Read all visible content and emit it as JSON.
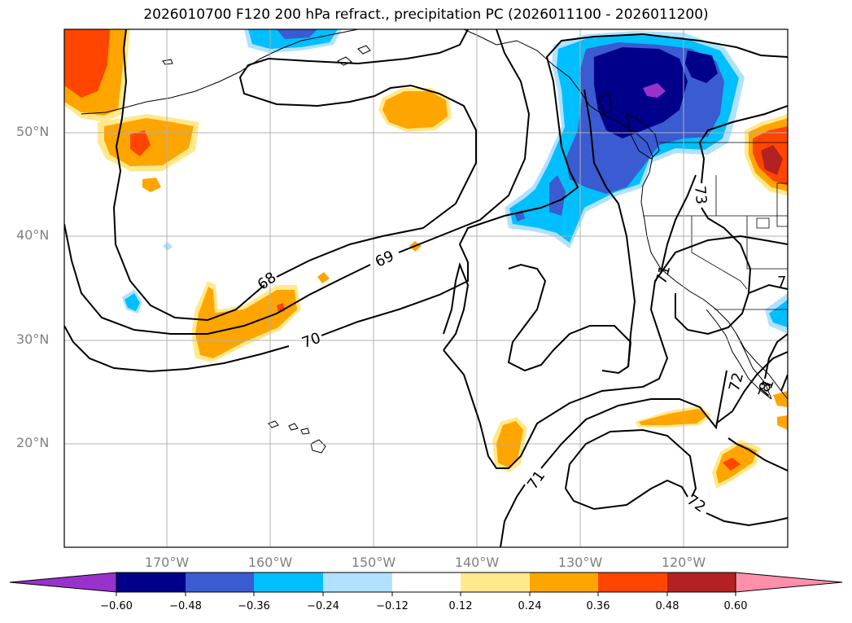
{
  "title": "2026010700 F120 200 hPa refract., precipitation PC (2026011100 - 2026011200)",
  "lat_labels": [
    "50°N",
    "40°N",
    "30°N",
    "20°N"
  ],
  "lon_labels": [
    "170°W",
    "160°W",
    "150°W",
    "140°W",
    "130°W",
    "120°W"
  ],
  "contour_labels": [
    "68",
    "69",
    "70",
    "71",
    "72",
    "73",
    "71",
    "72",
    "71",
    "7",
    "8"
  ],
  "colorbar": {
    "ticks": [
      "−0.60",
      "−0.48",
      "−0.36",
      "−0.24",
      "−0.12",
      "0.12",
      "0.24",
      "0.36",
      "0.48",
      "0.60"
    ],
    "colors": [
      "#9932cc",
      "#00008b",
      "#3a5bd1",
      "#00bfff",
      "#b0e2ff",
      "#ffffff",
      "#ffe98c",
      "#ffa500",
      "#ff4500",
      "#b22222",
      "#ff8fab"
    ]
  }
}
